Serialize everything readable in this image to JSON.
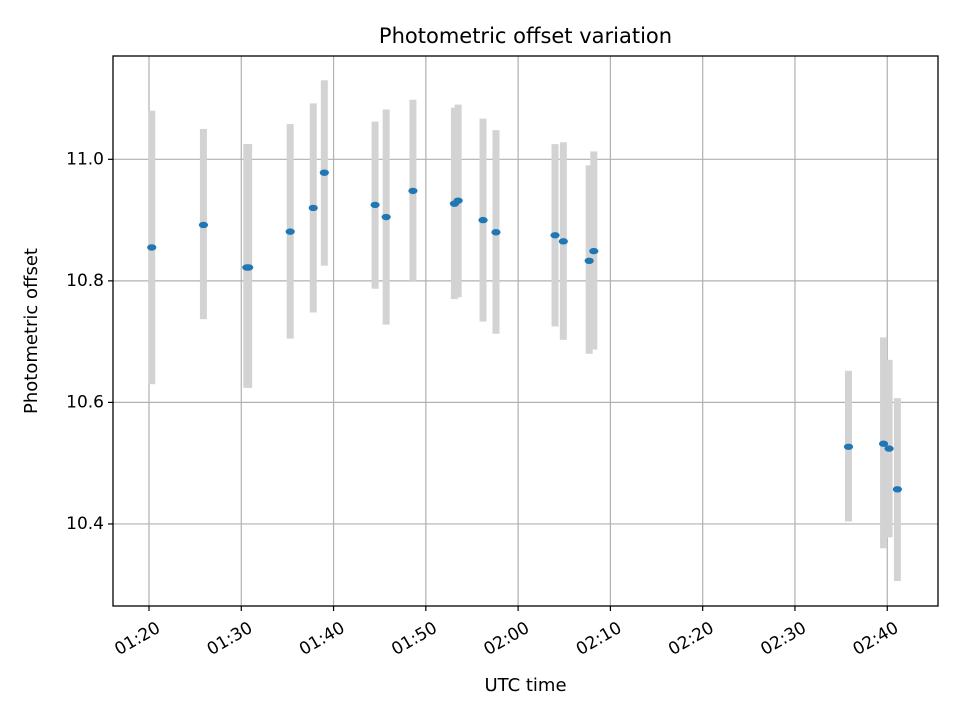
{
  "chart_data": {
    "type": "scatter",
    "title": "Photometric offset variation",
    "xlabel": "UTC time",
    "ylabel": "Photometric offset",
    "x_ticks": [
      "01:20",
      "01:30",
      "01:40",
      "01:50",
      "02:00",
      "02:10",
      "02:20",
      "02:30",
      "02:40"
    ],
    "y_ticks": [
      "10.4",
      "10.6",
      "10.8",
      "11.0"
    ],
    "xlim": [
      "01:16.1",
      "02:45.5"
    ],
    "ylim": [
      10.265,
      11.17
    ],
    "grid": true,
    "colors": {
      "point": "#1f77b4",
      "errorbar": "#d3d3d3",
      "grid": "#b0b0b0"
    },
    "points": [
      {
        "x": "01:20.3",
        "y": 10.855,
        "ymin": 10.63,
        "ymax": 11.08
      },
      {
        "x": "01:25.9",
        "y": 10.892,
        "ymin": 10.737,
        "ymax": 11.05
      },
      {
        "x": "01:30.6",
        "y": 10.822,
        "ymin": 10.624,
        "ymax": 11.025
      },
      {
        "x": "01:30.8",
        "y": 10.822,
        "ymin": 10.624,
        "ymax": 11.025
      },
      {
        "x": "01:35.3",
        "y": 10.881,
        "ymin": 10.705,
        "ymax": 11.058
      },
      {
        "x": "01:37.8",
        "y": 10.92,
        "ymin": 10.748,
        "ymax": 11.092
      },
      {
        "x": "01:39.0",
        "y": 10.978,
        "ymin": 10.825,
        "ymax": 11.13
      },
      {
        "x": "01:44.5",
        "y": 10.925,
        "ymin": 10.787,
        "ymax": 11.062
      },
      {
        "x": "01:45.7",
        "y": 10.905,
        "ymin": 10.728,
        "ymax": 11.082
      },
      {
        "x": "01:48.6",
        "y": 10.948,
        "ymin": 10.8,
        "ymax": 11.098
      },
      {
        "x": "01:53.1",
        "y": 10.927,
        "ymin": 10.77,
        "ymax": 11.085
      },
      {
        "x": "01:53.5",
        "y": 10.932,
        "ymin": 10.773,
        "ymax": 11.09
      },
      {
        "x": "01:56.2",
        "y": 10.9,
        "ymin": 10.733,
        "ymax": 11.067
      },
      {
        "x": "01:57.6",
        "y": 10.88,
        "ymin": 10.713,
        "ymax": 11.048
      },
      {
        "x": "02:04.0",
        "y": 10.875,
        "ymin": 10.725,
        "ymax": 11.025
      },
      {
        "x": "02:04.9",
        "y": 10.865,
        "ymin": 10.703,
        "ymax": 11.028
      },
      {
        "x": "02:07.7",
        "y": 10.833,
        "ymin": 10.68,
        "ymax": 10.99
      },
      {
        "x": "02:08.2",
        "y": 10.849,
        "ymin": 10.687,
        "ymax": 11.013
      },
      {
        "x": "02:35.8",
        "y": 10.527,
        "ymin": 10.404,
        "ymax": 10.652
      },
      {
        "x": "02:39.6",
        "y": 10.532,
        "ymin": 10.36,
        "ymax": 10.707
      },
      {
        "x": "02:40.2",
        "y": 10.524,
        "ymin": 10.378,
        "ymax": 10.67
      },
      {
        "x": "02:41.1",
        "y": 10.457,
        "ymin": 10.306,
        "ymax": 10.607
      }
    ]
  }
}
